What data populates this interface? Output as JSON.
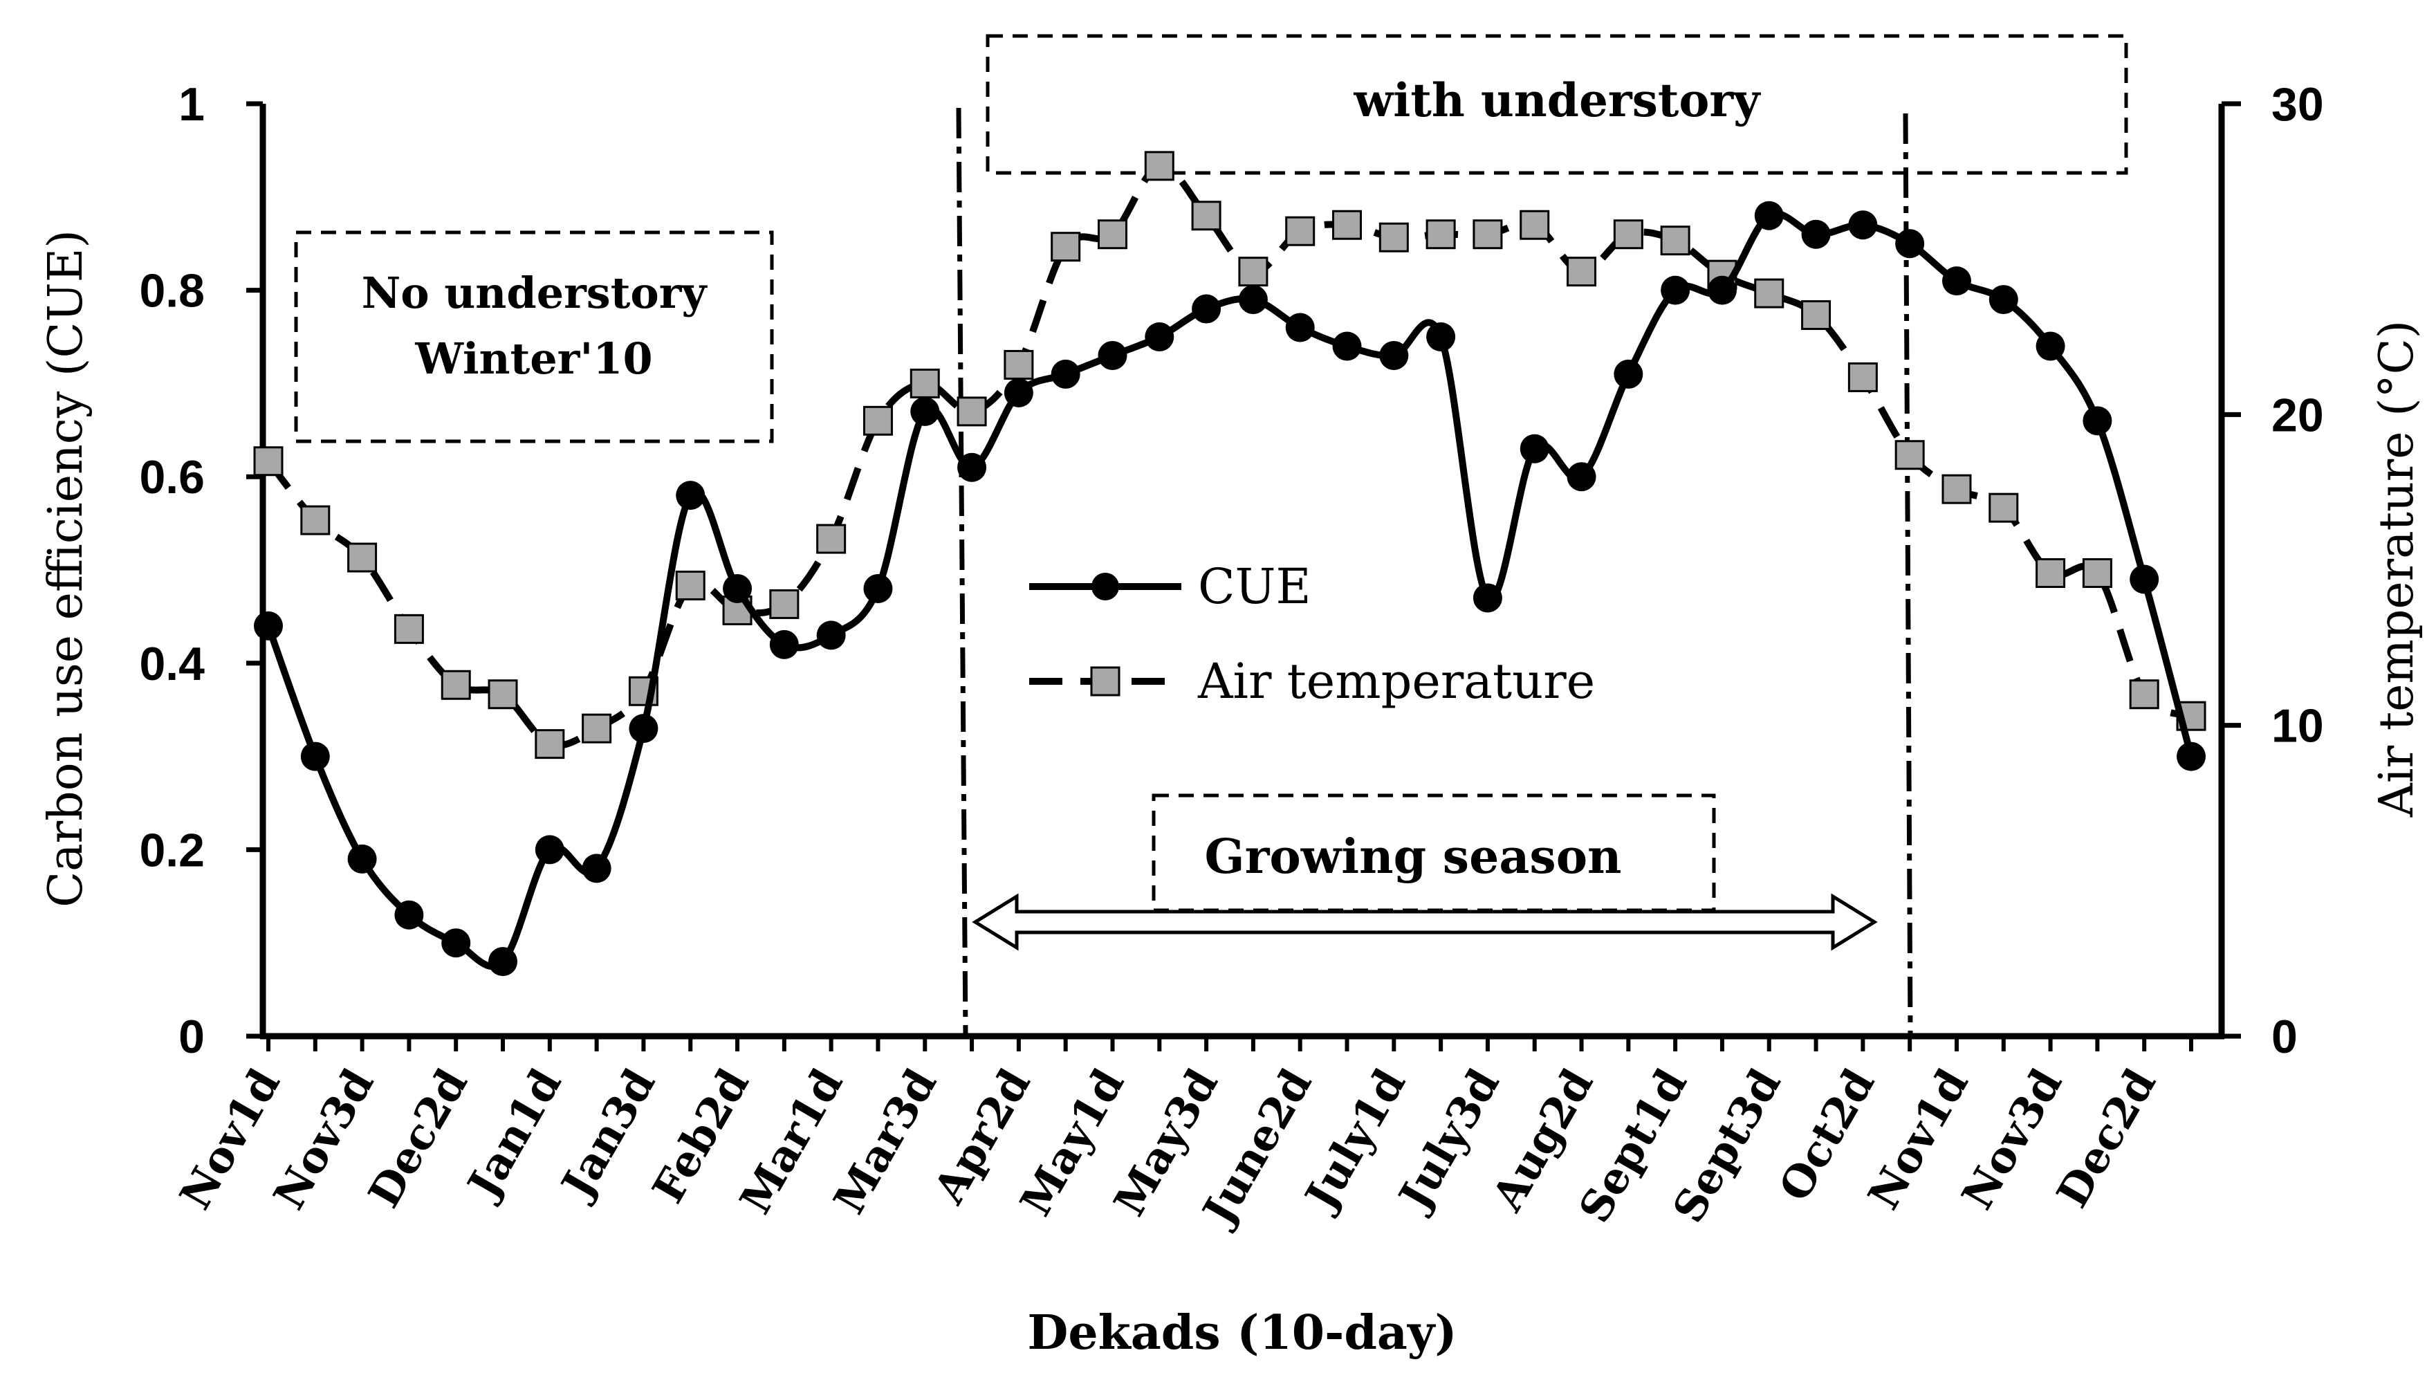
{
  "chart_data": {
    "type": "line",
    "xlabel": "Dekads (10-day)",
    "ylabel": "Carbon use efficiency (CUE)",
    "y2label": "Air temperature (°C)",
    "ylim": [
      0,
      1
    ],
    "y2lim": [
      0,
      30
    ],
    "yticks": [
      "0",
      "0.2",
      "0.4",
      "0.6",
      "0.8",
      "1"
    ],
    "y2ticks": [
      "0",
      "10",
      "20",
      "30"
    ],
    "categories": [
      "Nov1d",
      "Nov3d",
      "Dec2d",
      "Jan1d",
      "Jan3d",
      "Feb2d",
      "Mar1d",
      "Mar3d",
      "Apr2d",
      "May1d",
      "May3d",
      "June2d",
      "July1d",
      "July3d",
      "Aug2d",
      "Sept1d",
      "Sept3d",
      "Oct2d",
      "Nov1d",
      "Nov3d",
      "Dec2d"
    ],
    "category_positions": [
      0,
      2,
      4,
      6,
      8,
      10,
      12,
      14,
      16,
      18,
      20,
      22,
      24,
      26,
      28,
      30,
      32,
      34,
      36,
      38,
      40
    ],
    "series": [
      {
        "name": "CUE",
        "axis": "left",
        "x": [
          0,
          1,
          2,
          3,
          4,
          5,
          6,
          7,
          8,
          9,
          10,
          11,
          12,
          13,
          14,
          15,
          16,
          17,
          18,
          19,
          20,
          21,
          22,
          23,
          24,
          25,
          26,
          27,
          28,
          29,
          30,
          31,
          32,
          33,
          34,
          35,
          36,
          37,
          38,
          39,
          40,
          41
        ],
        "values": [
          0.44,
          0.3,
          0.19,
          0.13,
          0.1,
          0.08,
          0.2,
          0.18,
          0.33,
          0.58,
          0.48,
          0.42,
          0.43,
          0.48,
          0.67,
          0.61,
          0.69,
          0.71,
          0.73,
          0.75,
          0.78,
          0.79,
          0.76,
          0.74,
          0.73,
          0.75,
          0.47,
          0.63,
          0.6,
          0.71,
          0.8,
          0.8,
          0.88,
          0.86,
          0.87,
          0.85,
          0.81,
          0.79,
          0.74,
          0.66,
          0.49,
          0.3
        ]
      },
      {
        "name": "Air temperature",
        "axis": "right",
        "x": [
          0,
          1,
          2,
          3,
          4,
          5,
          6,
          7,
          8,
          9,
          10,
          11,
          12,
          13,
          14,
          15,
          16,
          17,
          18,
          19,
          20,
          21,
          22,
          23,
          24,
          25,
          26,
          27,
          28,
          29,
          30,
          31,
          32,
          33,
          34,
          35,
          36,
          37,
          38,
          39,
          40,
          41
        ],
        "values": [
          18.5,
          16.6,
          15.4,
          13.1,
          11.3,
          11.0,
          9.4,
          9.9,
          11.1,
          14.5,
          13.7,
          13.9,
          16.0,
          19.8,
          21.0,
          20.1,
          21.6,
          25.4,
          25.8,
          28.0,
          26.4,
          24.6,
          25.9,
          26.1,
          25.7,
          25.8,
          25.8,
          26.1,
          24.6,
          25.8,
          25.6,
          24.5,
          23.9,
          23.2,
          21.2,
          18.7,
          17.6,
          17.0,
          14.9,
          14.9,
          11.0,
          10.3
        ]
      }
    ],
    "legend": [
      "CUE",
      "Air temperature"
    ],
    "annotations": {
      "no_understory_line1": "No understory",
      "no_understory_line2": "Winter'10",
      "with_understory": "with understory",
      "growing_season": "Growing season"
    }
  }
}
